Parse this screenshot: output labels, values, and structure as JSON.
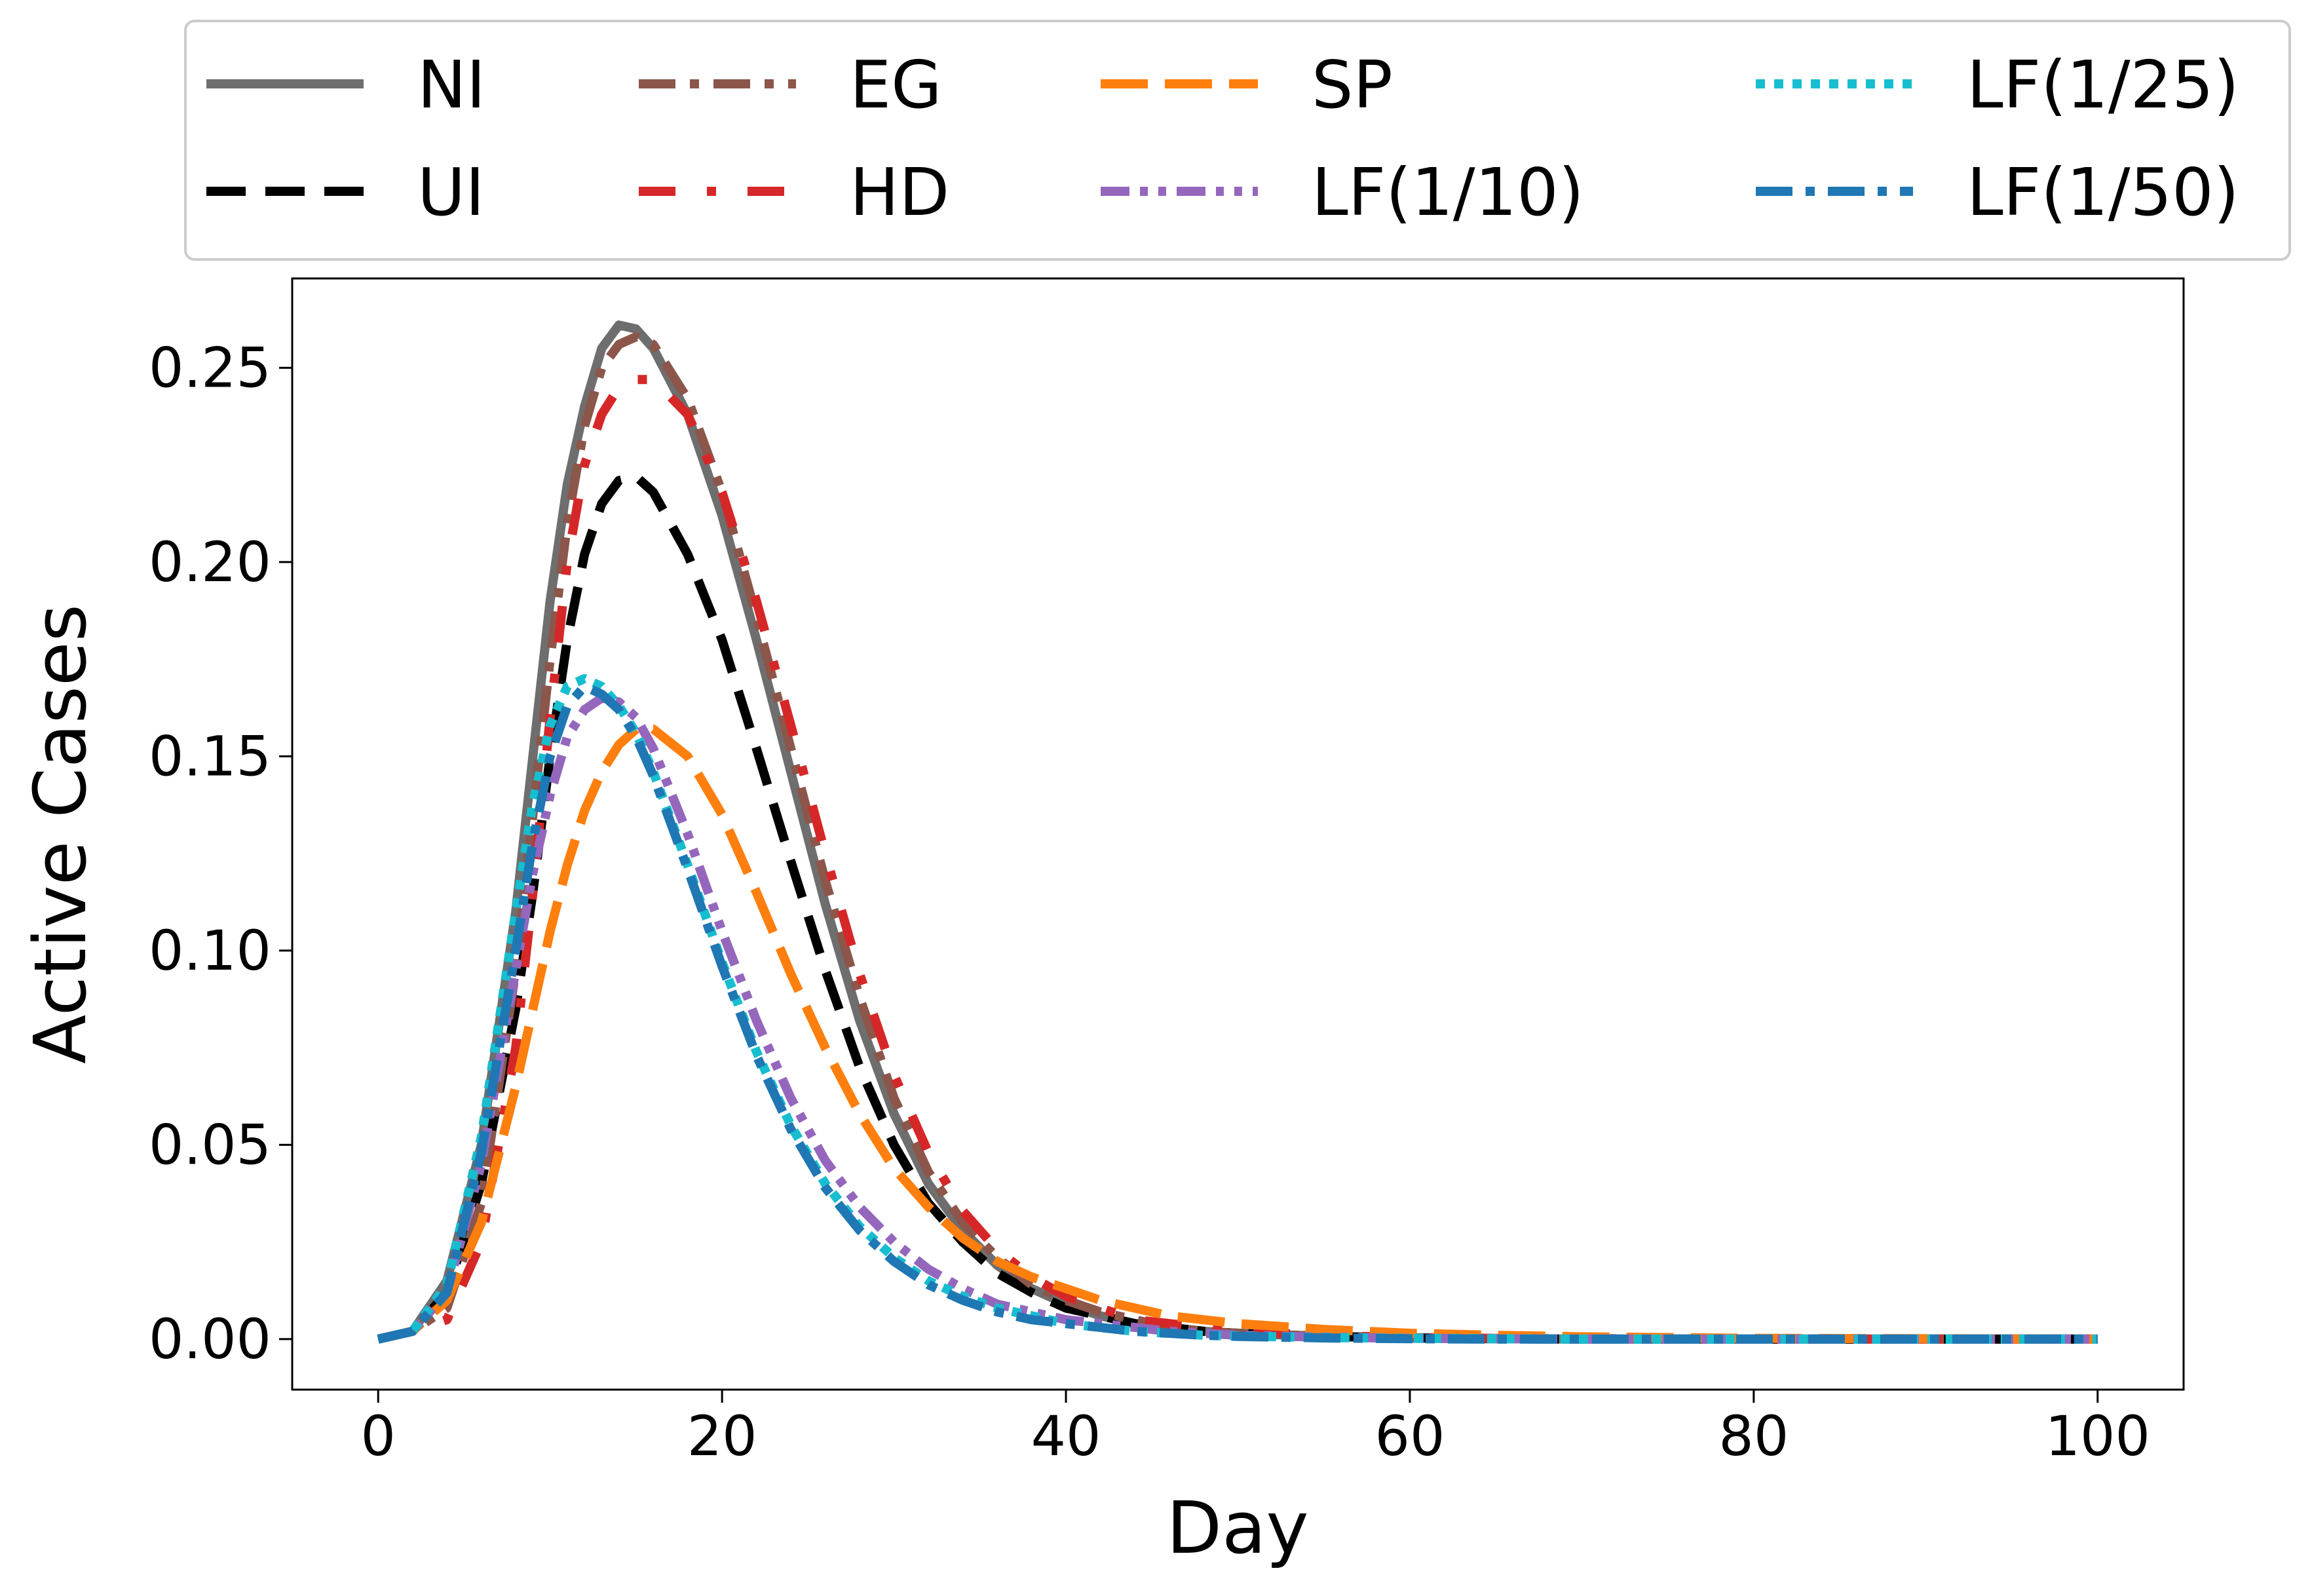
{
  "chart_data": {
    "type": "line",
    "xlabel": "Day",
    "ylabel": "Active Cases",
    "xlim": [
      -5,
      105
    ],
    "ylim": [
      -0.013,
      0.273
    ],
    "xticks": [
      0,
      20,
      40,
      60,
      80,
      100
    ],
    "yticks": [
      0.0,
      0.05,
      0.1,
      0.15,
      0.2,
      0.25
    ],
    "xtick_labels": [
      "0",
      "20",
      "40",
      "60",
      "80",
      "100"
    ],
    "ytick_labels": [
      "0.00",
      "0.05",
      "0.10",
      "0.15",
      "0.20",
      "0.25"
    ],
    "grid": false,
    "legend": {
      "placement": "top (above plot)",
      "columns": 4
    },
    "series": [
      {
        "name": "NI",
        "color": "#6e6e6e",
        "style": "solid",
        "x": [
          0,
          2,
          4,
          6,
          8,
          9,
          10,
          11,
          12,
          13,
          14,
          15,
          16,
          18,
          20,
          22,
          24,
          26,
          28,
          30,
          32,
          34,
          36,
          38,
          40,
          42,
          44,
          46,
          48,
          50,
          55,
          60,
          65,
          70,
          80,
          90,
          100
        ],
        "y": [
          0.0,
          0.002,
          0.015,
          0.05,
          0.11,
          0.15,
          0.19,
          0.22,
          0.24,
          0.255,
          0.261,
          0.26,
          0.255,
          0.238,
          0.212,
          0.18,
          0.146,
          0.112,
          0.082,
          0.058,
          0.04,
          0.028,
          0.019,
          0.013,
          0.009,
          0.006,
          0.004,
          0.003,
          0.002,
          0.0015,
          0.0007,
          0.0003,
          0.0001,
          0,
          0,
          0,
          0
        ]
      },
      {
        "name": "UI",
        "color": "#000000",
        "style": "dash",
        "x": [
          0,
          2,
          4,
          6,
          8,
          9,
          10,
          11,
          12,
          13,
          14,
          15,
          16,
          18,
          20,
          22,
          24,
          26,
          28,
          30,
          32,
          34,
          36,
          38,
          40,
          42,
          44,
          46,
          48,
          50,
          55,
          60,
          65,
          70,
          80,
          90,
          100
        ],
        "y": [
          0.0,
          0.002,
          0.012,
          0.04,
          0.085,
          0.115,
          0.15,
          0.18,
          0.202,
          0.215,
          0.221,
          0.222,
          0.218,
          0.202,
          0.18,
          0.152,
          0.123,
          0.095,
          0.07,
          0.05,
          0.035,
          0.025,
          0.017,
          0.012,
          0.008,
          0.006,
          0.004,
          0.003,
          0.002,
          0.0015,
          0.0007,
          0.0003,
          0.0001,
          0,
          0,
          0,
          0
        ]
      },
      {
        "name": "EG",
        "color": "#8c564b",
        "style": "dashdot",
        "x": [
          0,
          2,
          4,
          6,
          8,
          9,
          10,
          11,
          12,
          13,
          14,
          15,
          16,
          18,
          20,
          22,
          24,
          26,
          28,
          30,
          32,
          34,
          36,
          38,
          40,
          42,
          44,
          46,
          48,
          50,
          55,
          60,
          65,
          70,
          80,
          90,
          100
        ],
        "y": [
          0.0,
          0.002,
          0.008,
          0.035,
          0.095,
          0.135,
          0.175,
          0.21,
          0.235,
          0.25,
          0.256,
          0.258,
          0.256,
          0.242,
          0.218,
          0.186,
          0.152,
          0.118,
          0.088,
          0.062,
          0.043,
          0.03,
          0.021,
          0.014,
          0.01,
          0.007,
          0.005,
          0.003,
          0.002,
          0.0015,
          0.0007,
          0.0003,
          0.0001,
          0,
          0,
          0,
          0
        ]
      },
      {
        "name": "HD",
        "color": "#d62728",
        "style": "sparse-dash",
        "x": [
          0,
          2,
          4,
          6,
          8,
          9,
          10,
          11,
          12,
          13,
          14,
          15,
          16,
          18,
          20,
          22,
          24,
          26,
          28,
          30,
          32,
          34,
          36,
          38,
          40,
          42,
          44,
          46,
          48,
          50,
          55,
          60,
          65,
          70,
          80,
          90,
          100
        ],
        "y": [
          0.0,
          0.002,
          0.005,
          0.025,
          0.075,
          0.115,
          0.16,
          0.2,
          0.225,
          0.238,
          0.245,
          0.247,
          0.247,
          0.238,
          0.218,
          0.19,
          0.158,
          0.125,
          0.094,
          0.068,
          0.048,
          0.033,
          0.023,
          0.016,
          0.011,
          0.008,
          0.005,
          0.004,
          0.003,
          0.002,
          0.0009,
          0.0004,
          0.0002,
          0.0001,
          0,
          0,
          0
        ]
      },
      {
        "name": "SP",
        "color": "#ff7f0e",
        "style": "longdash",
        "x": [
          0,
          2,
          4,
          6,
          8,
          9,
          10,
          11,
          12,
          13,
          14,
          15,
          16,
          18,
          20,
          22,
          24,
          26,
          28,
          30,
          32,
          34,
          36,
          38,
          40,
          42,
          44,
          46,
          48,
          50,
          55,
          60,
          65,
          70,
          80,
          90,
          100
        ],
        "y": [
          0.0,
          0.002,
          0.01,
          0.03,
          0.065,
          0.085,
          0.105,
          0.122,
          0.136,
          0.146,
          0.153,
          0.157,
          0.157,
          0.15,
          0.135,
          0.115,
          0.094,
          0.075,
          0.058,
          0.044,
          0.034,
          0.026,
          0.02,
          0.016,
          0.013,
          0.01,
          0.008,
          0.006,
          0.005,
          0.004,
          0.0025,
          0.0015,
          0.001,
          0.0006,
          0.0002,
          0.0001,
          0
        ]
      },
      {
        "name": "LF(1/10)",
        "color": "#9467bd",
        "style": "dashdotdot",
        "x": [
          0,
          2,
          4,
          6,
          8,
          9,
          10,
          11,
          12,
          13,
          14,
          15,
          16,
          18,
          20,
          22,
          24,
          26,
          28,
          30,
          32,
          34,
          36,
          38,
          40,
          42,
          44,
          46,
          48,
          50,
          55,
          60,
          65,
          70,
          80,
          90,
          100
        ],
        "y": [
          0.0,
          0.002,
          0.012,
          0.045,
          0.095,
          0.12,
          0.14,
          0.155,
          0.162,
          0.165,
          0.164,
          0.16,
          0.152,
          0.13,
          0.105,
          0.082,
          0.062,
          0.046,
          0.034,
          0.025,
          0.018,
          0.013,
          0.009,
          0.007,
          0.005,
          0.004,
          0.003,
          0.002,
          0.0015,
          0.001,
          0.0005,
          0.0002,
          0.0001,
          0,
          0,
          0,
          0
        ]
      },
      {
        "name": "LF(1/25)",
        "color": "#17becf",
        "style": "dotted",
        "x": [
          0,
          2,
          4,
          6,
          8,
          9,
          10,
          11,
          12,
          13,
          14,
          15,
          16,
          18,
          20,
          22,
          24,
          26,
          28,
          30,
          32,
          34,
          36,
          38,
          40,
          42,
          44,
          46,
          48,
          50,
          55,
          60,
          65,
          70,
          80,
          90,
          100
        ],
        "y": [
          0.0,
          0.002,
          0.014,
          0.052,
          0.11,
          0.138,
          0.158,
          0.168,
          0.17,
          0.168,
          0.163,
          0.156,
          0.146,
          0.122,
          0.097,
          0.074,
          0.055,
          0.04,
          0.029,
          0.021,
          0.015,
          0.011,
          0.008,
          0.006,
          0.004,
          0.003,
          0.002,
          0.0015,
          0.001,
          0.0008,
          0.0004,
          0.0002,
          0.0001,
          0,
          0,
          0,
          0
        ]
      },
      {
        "name": "LF(1/50)",
        "color": "#1f77b4",
        "style": "dashdot-blue",
        "x": [
          0,
          2,
          4,
          6,
          8,
          9,
          10,
          11,
          12,
          13,
          14,
          15,
          16,
          18,
          20,
          22,
          24,
          26,
          28,
          30,
          32,
          34,
          36,
          38,
          40,
          42,
          44,
          46,
          48,
          50,
          55,
          60,
          65,
          70,
          80,
          90,
          100
        ],
        "y": [
          0.0,
          0.002,
          0.012,
          0.048,
          0.1,
          0.128,
          0.15,
          0.163,
          0.168,
          0.166,
          0.162,
          0.155,
          0.145,
          0.121,
          0.096,
          0.073,
          0.054,
          0.039,
          0.028,
          0.02,
          0.014,
          0.01,
          0.007,
          0.005,
          0.004,
          0.003,
          0.002,
          0.0015,
          0.001,
          0.0007,
          0.0003,
          0.0001,
          0,
          0,
          0,
          0,
          0
        ]
      }
    ]
  }
}
